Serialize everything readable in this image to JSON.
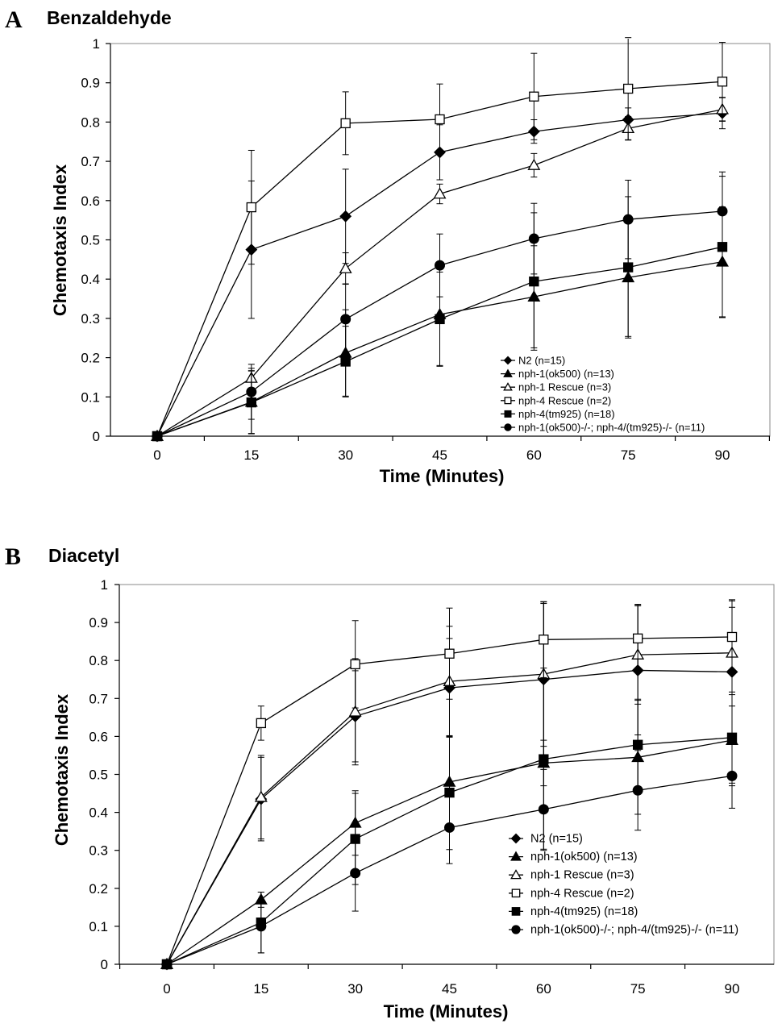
{
  "chart_data": [
    {
      "type": "line",
      "panel_label": "A",
      "title": "Benzaldehyde",
      "xlabel": "Time (Minutes)",
      "ylabel": "Chemotaxis Index",
      "x": [
        0,
        15,
        30,
        45,
        60,
        75,
        90
      ],
      "x_tick_labels": [
        "0",
        "15",
        "30",
        "45",
        "60",
        "75",
        "90"
      ],
      "ylim": [
        0,
        1
      ],
      "y_tick_labels": [
        "0",
        "0.1",
        "0.2",
        "0.3",
        "0.4",
        "0.5",
        "0.6",
        "0.7",
        "0.8",
        "0.9",
        "1"
      ],
      "legend_position": "bottom-right",
      "series": [
        {
          "name": "N2 (n=15)",
          "marker": "diamond-filled",
          "values": [
            0,
            0.475,
            0.56,
            0.723,
            0.776,
            0.806,
            0.823
          ],
          "errors": [
            0,
            0.175,
            0.12,
            0.07,
            0.03,
            0.03,
            0.04
          ]
        },
        {
          "name": "nph-1(ok500) (n=13)",
          "marker": "triangle-filled",
          "values": [
            0,
            0.087,
            0.212,
            0.31,
            0.355,
            0.404,
            0.444
          ],
          "errors": [
            0,
            0.08,
            0.11,
            0.13,
            0.13,
            0.15,
            0.14
          ]
        },
        {
          "name": "nph-1 Rescue (n=3)",
          "marker": "triangle-open",
          "values": [
            0,
            0.148,
            0.427,
            0.617,
            0.69,
            0.784,
            0.832
          ],
          "errors": [
            0,
            0.025,
            0.04,
            0.025,
            0.03,
            0.03,
            0.03
          ]
        },
        {
          "name": "nph-4 Rescue (n=2)",
          "marker": "square-open",
          "values": [
            0,
            0.583,
            0.797,
            0.807,
            0.865,
            0.885,
            0.903
          ],
          "errors": [
            0,
            0.145,
            0.08,
            0.09,
            0.11,
            0.13,
            0.1
          ]
        },
        {
          "name": "nph-4(tm925) (n=18)",
          "marker": "square-filled",
          "values": [
            0,
            0.086,
            0.19,
            0.298,
            0.394,
            0.43,
            0.482
          ],
          "errors": [
            0,
            0.08,
            0.09,
            0.12,
            0.175,
            0.18,
            0.18
          ]
        },
        {
          "name": "nph-1(ok500)-/-; nph-4/(tm925)-/- (n=11)",
          "marker": "circle-filled",
          "values": [
            0,
            0.113,
            0.298,
            0.435,
            0.503,
            0.552,
            0.573
          ],
          "errors": [
            0,
            0.07,
            0.09,
            0.08,
            0.09,
            0.1,
            0.1
          ]
        }
      ]
    },
    {
      "type": "line",
      "panel_label": "B",
      "title": "Diacetyl",
      "xlabel": "Time (Minutes)",
      "ylabel": "Chemotaxis Index",
      "x": [
        0,
        15,
        30,
        45,
        60,
        75,
        90
      ],
      "x_tick_labels": [
        "0",
        "15",
        "30",
        "45",
        "60",
        "75",
        "90"
      ],
      "ylim": [
        0,
        1
      ],
      "y_tick_labels": [
        "0",
        "0.1",
        "0.2",
        "0.3",
        "0.4",
        "0.5",
        "0.6",
        "0.7",
        "0.8",
        "0.9",
        "1"
      ],
      "legend_position": "bottom-right",
      "series": [
        {
          "name": "N2 (n=15)",
          "marker": "diamond-filled",
          "values": [
            0,
            0.435,
            0.653,
            0.728,
            0.75,
            0.774,
            0.77
          ],
          "errors": [
            0,
            0.11,
            0.12,
            0.13,
            0.2,
            0.17,
            0.17
          ]
        },
        {
          "name": "nph-1(ok500) (n=13)",
          "marker": "triangle-filled",
          "values": [
            0,
            0.17,
            0.372,
            0.48,
            0.53,
            0.545,
            0.59
          ],
          "errors": [
            0,
            0.02,
            0.085,
            0.12,
            0.06,
            0.15,
            0.12
          ]
        },
        {
          "name": "nph-1 Rescue (n=3)",
          "marker": "triangle-open",
          "values": [
            0,
            0.44,
            0.665,
            0.745,
            0.764,
            0.815,
            0.82
          ],
          "errors": [
            0,
            0.11,
            0.14,
            0.145,
            0.19,
            0.13,
            0.14
          ]
        },
        {
          "name": "nph-4 Rescue (n=2)",
          "marker": "square-open",
          "values": [
            0,
            0.635,
            0.79,
            0.818,
            0.855,
            0.858,
            0.862
          ],
          "errors": [
            0,
            0.045,
            0.115,
            0.12,
            0.1,
            0.09,
            0.095
          ]
        },
        {
          "name": "nph-4(tm925) (n=18)",
          "marker": "square-filled",
          "values": [
            0,
            0.11,
            0.33,
            0.452,
            0.54,
            0.578,
            0.597
          ],
          "errors": [
            0,
            0.08,
            0.12,
            0.15,
            0.24,
            0.12,
            0.12
          ]
        },
        {
          "name": "nph-1(ok500)-/-; nph-4/(tm925)-/- (n=11)",
          "marker": "circle-filled",
          "values": [
            0,
            0.1,
            0.24,
            0.36,
            0.408,
            0.458,
            0.496
          ],
          "errors": [
            0,
            0.07,
            0.1,
            0.095,
            0.105,
            0.105,
            0.085
          ]
        }
      ]
    }
  ]
}
